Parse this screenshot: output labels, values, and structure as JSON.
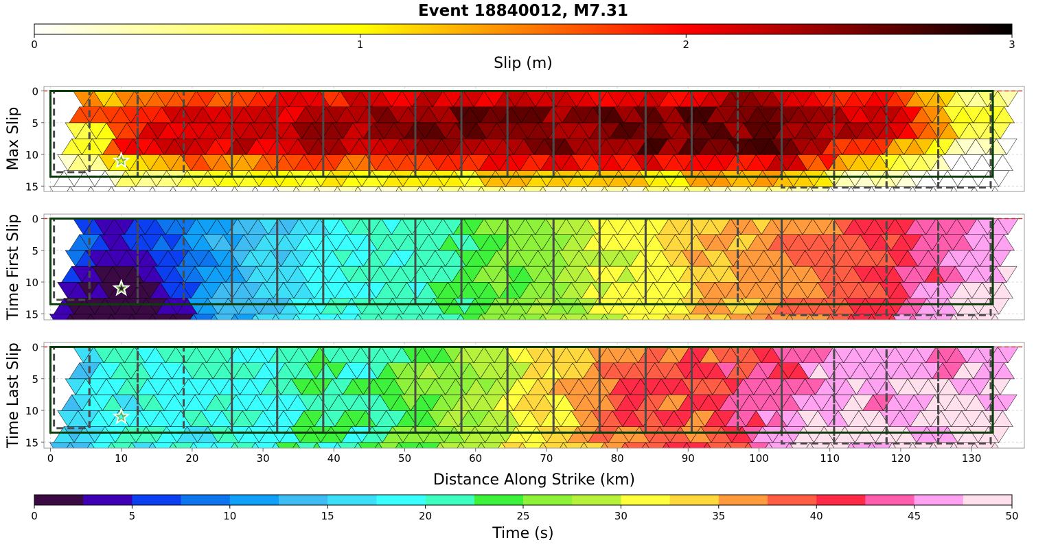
{
  "chart_data": {
    "type": "heatmap",
    "title": "Event 18840012, M7.31",
    "slip_colorbar": {
      "label": "Slip (m)",
      "range": [
        0,
        3
      ],
      "ticks": [
        "0",
        "1",
        "2",
        "3"
      ],
      "stops": [
        "#ffffff",
        "#ffff00",
        "#ff0000",
        "#000000"
      ]
    },
    "time_colorbar": {
      "label": "Time (s)",
      "range": [
        0,
        50
      ],
      "ticks": [
        "0",
        "5",
        "10",
        "15",
        "20",
        "25",
        "30",
        "35",
        "40",
        "45",
        "50"
      ],
      "colors": [
        "#3b0a45",
        "#3f00b5",
        "#0b3ff0",
        "#0d75ee",
        "#10a0f8",
        "#3fbdf2",
        "#3ddff8",
        "#3affff",
        "#3effc0",
        "#3ef23b",
        "#8ef23b",
        "#b6f23b",
        "#ffff3d",
        "#ffd83d",
        "#ff9a3d",
        "#ff5e45",
        "#ff2a45",
        "#ff5eaf",
        "#ffa2f2",
        "#ffe0ec"
      ]
    },
    "xaxis": {
      "label": "Distance Along Strike (km)",
      "range": [
        -1,
        137
      ],
      "ticks": [
        "0",
        "10",
        "20",
        "30",
        "40",
        "50",
        "60",
        "70",
        "80",
        "90",
        "100",
        "110",
        "120",
        "130"
      ]
    },
    "yaxis": {
      "range": [
        16,
        -1
      ],
      "ticks": [
        "0",
        "5",
        "10",
        "15"
      ]
    },
    "panels": [
      {
        "ylabel": "Max Slip",
        "colorbar": "slip",
        "field": [
          {
            "x": 5,
            "value": 1.6
          },
          {
            "x": 15,
            "value": 2.0
          },
          {
            "x": 30,
            "value": 2.2
          },
          {
            "x": 55,
            "value": 2.45
          },
          {
            "x": 80,
            "value": 2.5
          },
          {
            "x": 103,
            "value": 2.6
          },
          {
            "x": 118,
            "value": 2.1
          },
          {
            "x": 130,
            "value": 1.1
          }
        ]
      },
      {
        "ylabel": "Time First Slip",
        "colorbar": "time",
        "field": [
          {
            "x": 0,
            "value": 10
          },
          {
            "x": 10,
            "value": 3
          },
          {
            "x": 20,
            "value": 10
          },
          {
            "x": 30,
            "value": 15
          },
          {
            "x": 40,
            "value": 19
          },
          {
            "x": 55,
            "value": 22
          },
          {
            "x": 65,
            "value": 25
          },
          {
            "x": 75,
            "value": 29
          },
          {
            "x": 85,
            "value": 32
          },
          {
            "x": 95,
            "value": 35
          },
          {
            "x": 105,
            "value": 37
          },
          {
            "x": 115,
            "value": 40
          },
          {
            "x": 122,
            "value": 42
          },
          {
            "x": 130,
            "value": 46
          },
          {
            "x": 136,
            "value": 47
          }
        ]
      },
      {
        "ylabel": "Time Last Slip",
        "colorbar": "time",
        "field": [
          {
            "x": 0,
            "value": 14
          },
          {
            "x": 10,
            "value": 19
          },
          {
            "x": 30,
            "value": 20
          },
          {
            "x": 45,
            "value": 22
          },
          {
            "x": 52,
            "value": 25
          },
          {
            "x": 62,
            "value": 29
          },
          {
            "x": 72,
            "value": 34
          },
          {
            "x": 82,
            "value": 39
          },
          {
            "x": 95,
            "value": 40
          },
          {
            "x": 103,
            "value": 44
          },
          {
            "x": 112,
            "value": 46
          },
          {
            "x": 122,
            "value": 47
          },
          {
            "x": 136,
            "value": 47
          }
        ]
      }
    ],
    "hypocenter": {
      "x": 10,
      "depth": 11
    },
    "fault_outline_km": {
      "x": [
        0,
        133
      ],
      "depth": [
        0,
        13.5
      ]
    },
    "subsection_boundaries_km": [
      0.5,
      5.5,
      12.3,
      18.8,
      25.6,
      32.0,
      38.5,
      45.0,
      51.5,
      58.0,
      64.5,
      71.0,
      77.5,
      84.0,
      90.5,
      97.0,
      103.2,
      110.6,
      118.0,
      125.3,
      132.7
    ]
  }
}
